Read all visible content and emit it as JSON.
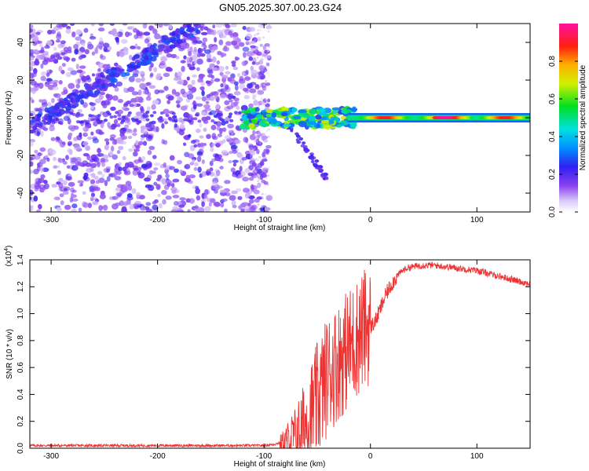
{
  "title": "GN05.2025.307.00.23.G24",
  "chart_data": [
    {
      "type": "heatmap",
      "xlabel": "Height of straight line (km)",
      "ylabel": "Frequency (Hz)",
      "xlim": [
        -320,
        150
      ],
      "ylim": [
        -50,
        50
      ],
      "xticks": [
        -300,
        -200,
        -100,
        0,
        100
      ],
      "yticks": [
        -40,
        -20,
        0,
        20,
        40
      ],
      "xtick_labels": [
        "-300",
        "-200",
        "-100",
        "0",
        "100"
      ],
      "ytick_labels": [
        "-40",
        "-20",
        "0",
        "20",
        "40"
      ],
      "colorbar": {
        "label": "Normalized spectral amplitude",
        "range": [
          0,
          1
        ],
        "ticks": [
          0.0,
          0.2,
          0.4,
          0.6,
          0.8
        ],
        "tick_labels": [
          "0.0",
          "0.2",
          "0.4",
          "0.6",
          "0.8"
        ]
      },
      "features": [
        {
          "name": "diagonal noise streak",
          "x": [
            -320,
            -160
          ],
          "y": [
            -5,
            50
          ],
          "amplitude": 0.2
        },
        {
          "name": "noise floor region",
          "x": [
            -320,
            -95
          ],
          "y": [
            -50,
            50
          ],
          "amplitude": 0.1
        },
        {
          "name": "descending branch",
          "x": [
            -75,
            -40
          ],
          "y": [
            -5,
            -33
          ],
          "amplitude": 0.2
        },
        {
          "name": "main carrier",
          "x": [
            -120,
            150
          ],
          "y": [
            0,
            0
          ],
          "amplitude": 0.95
        }
      ]
    },
    {
      "type": "line",
      "xlabel": "Height of straight line (km)",
      "ylabel": "SNR (10 * v/v)",
      "yscale_label": "(x10",
      "yscale_exp": "4",
      "yscale_close": ")",
      "xlim": [
        -320,
        150
      ],
      "ylim": [
        0,
        1.4
      ],
      "xticks": [
        -300,
        -200,
        -100,
        0,
        100
      ],
      "yticks": [
        0.0,
        0.2,
        0.4,
        0.6,
        0.8,
        1.0,
        1.2,
        1.4
      ],
      "xtick_labels": [
        "-300",
        "-200",
        "-100",
        "0",
        "100"
      ],
      "ytick_labels": [
        "0.0",
        "0.2",
        "0.4",
        "0.6",
        "0.8",
        "1.0",
        "1.2",
        "1.4"
      ],
      "series": [
        {
          "name": "SNR",
          "color": "#ee3333",
          "x": [
            -320,
            -280,
            -240,
            -200,
            -160,
            -120,
            -100,
            -90,
            -80,
            -70,
            -60,
            -50,
            -45,
            -40,
            -35,
            -30,
            -25,
            -20,
            -15,
            -10,
            -5,
            0,
            5,
            10,
            15,
            20,
            25,
            30,
            35,
            40,
            50,
            60,
            70,
            80,
            90,
            100,
            110,
            120,
            130,
            140,
            150
          ],
          "y": [
            0.02,
            0.02,
            0.02,
            0.02,
            0.02,
            0.02,
            0.02,
            0.03,
            0.05,
            0.1,
            0.2,
            0.35,
            0.45,
            0.55,
            0.6,
            0.65,
            0.7,
            0.75,
            0.8,
            0.85,
            0.9,
            0.9,
            0.95,
            1.05,
            1.15,
            1.22,
            1.28,
            1.32,
            1.34,
            1.35,
            1.36,
            1.36,
            1.35,
            1.34,
            1.33,
            1.32,
            1.3,
            1.28,
            1.26,
            1.24,
            1.22
          ]
        }
      ]
    }
  ]
}
